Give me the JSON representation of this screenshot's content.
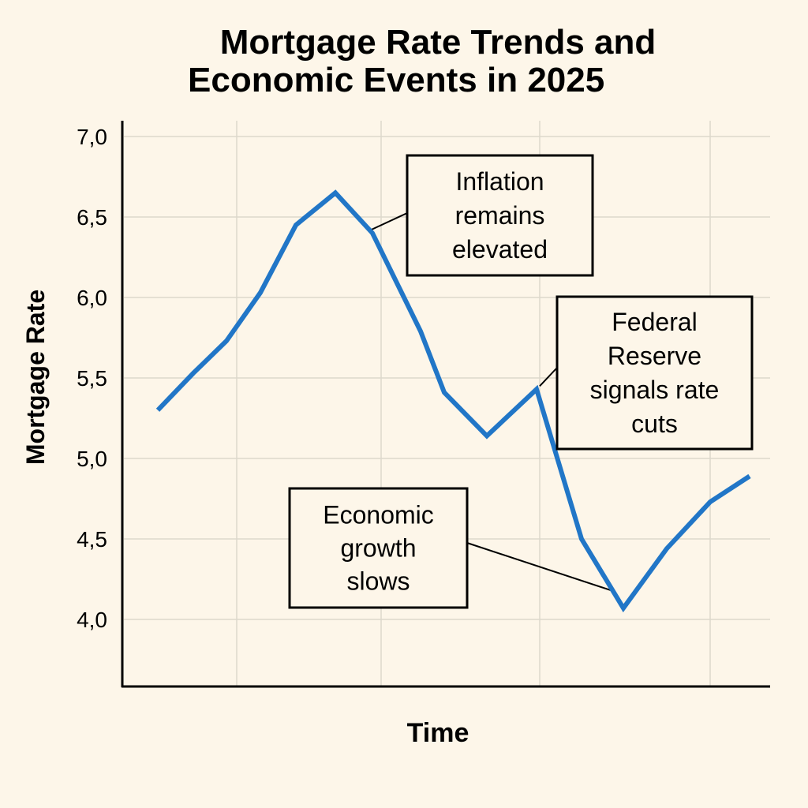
{
  "chart_data": {
    "type": "line",
    "title": "Mortgage Rate Trends and Economic Events in 2025",
    "title_lines": [
      "Mortgage Rate Trends and",
      "Economic Events in 2025"
    ],
    "xlabel": "Time",
    "ylabel": "Mortgage Rate",
    "ylim": [
      3.58,
      7.0
    ],
    "yticks": [
      {
        "value": 7.0,
        "label": "7,0"
      },
      {
        "value": 6.5,
        "label": "6,5"
      },
      {
        "value": 6.0,
        "label": "6,0"
      },
      {
        "value": 5.5,
        "label": "5,5"
      },
      {
        "value": 5.0,
        "label": "5,0"
      },
      {
        "value": 4.5,
        "label": "4,5"
      },
      {
        "value": 4.0,
        "label": "4,0"
      }
    ],
    "grid": true,
    "series": [
      {
        "name": "Mortgage Rate",
        "color": "#2176c7",
        "x": [
          0,
          1,
          2,
          3,
          4,
          5,
          6,
          7,
          8,
          9,
          10,
          11,
          12,
          13,
          14,
          15
        ],
        "values": [
          5.3,
          5.53,
          5.73,
          6.03,
          6.45,
          6.65,
          6.4,
          5.79,
          5.41,
          5.14,
          5.43,
          4.5,
          4.07,
          4.44,
          4.73,
          4.89
        ]
      }
    ],
    "annotations": [
      {
        "lines": [
          "Inflation",
          "remains",
          "elevated"
        ],
        "point_index": 6
      },
      {
        "lines": [
          "Federal",
          "Reserve",
          "signals rate",
          "cuts"
        ],
        "point_index": 10
      },
      {
        "lines": [
          "Economic",
          "growth",
          "slows"
        ],
        "point_index": 12
      }
    ]
  }
}
